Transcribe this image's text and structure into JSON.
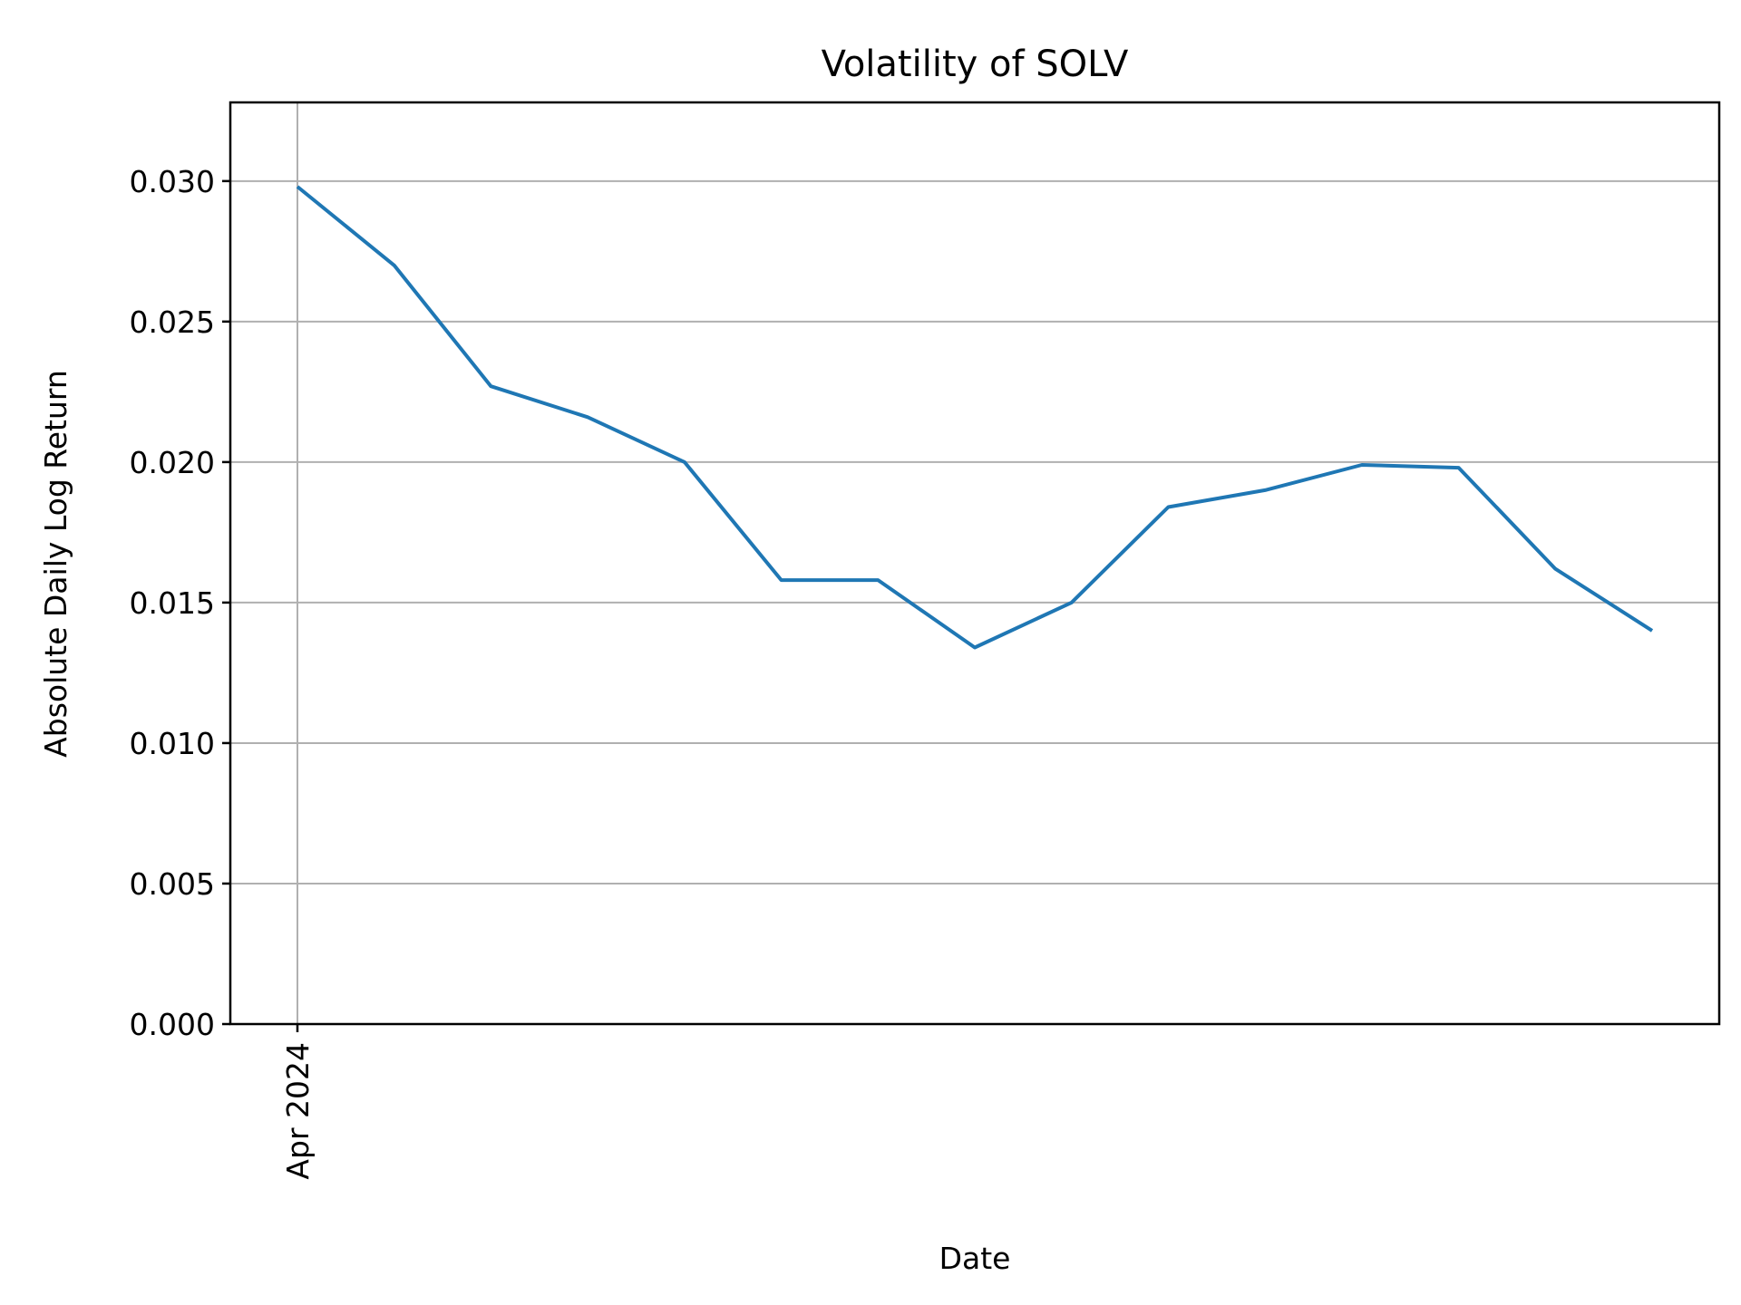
{
  "chart_data": {
    "type": "line",
    "title": "Volatility of SOLV",
    "xlabel": "Date",
    "ylabel": "Absolute Daily Log Return",
    "x_tick_labels": [
      "Apr 2024"
    ],
    "y_tick_labels": [
      "0.000",
      "0.005",
      "0.010",
      "0.015",
      "0.020",
      "0.025",
      "0.030"
    ],
    "y_ticks": [
      0.0,
      0.005,
      0.01,
      0.015,
      0.02,
      0.025,
      0.03
    ],
    "ylim": [
      0.0,
      0.0328
    ],
    "grid": true,
    "legend": null,
    "series": [
      {
        "name": "SOLV volatility",
        "color": "#1f77b4",
        "x_index": [
          0,
          1,
          2,
          3,
          4,
          5,
          6,
          7,
          8,
          9,
          10,
          11,
          12,
          13,
          14
        ],
        "values": [
          0.0298,
          0.027,
          0.0227,
          0.0216,
          0.02,
          0.0158,
          0.0158,
          0.0134,
          0.015,
          0.0184,
          0.019,
          0.0199,
          0.0198,
          0.0162,
          0.014
        ]
      }
    ]
  },
  "colors": {
    "line": "#1f77b4",
    "grid": "#b0b0b0",
    "axes": "#000000",
    "background": "#ffffff"
  }
}
